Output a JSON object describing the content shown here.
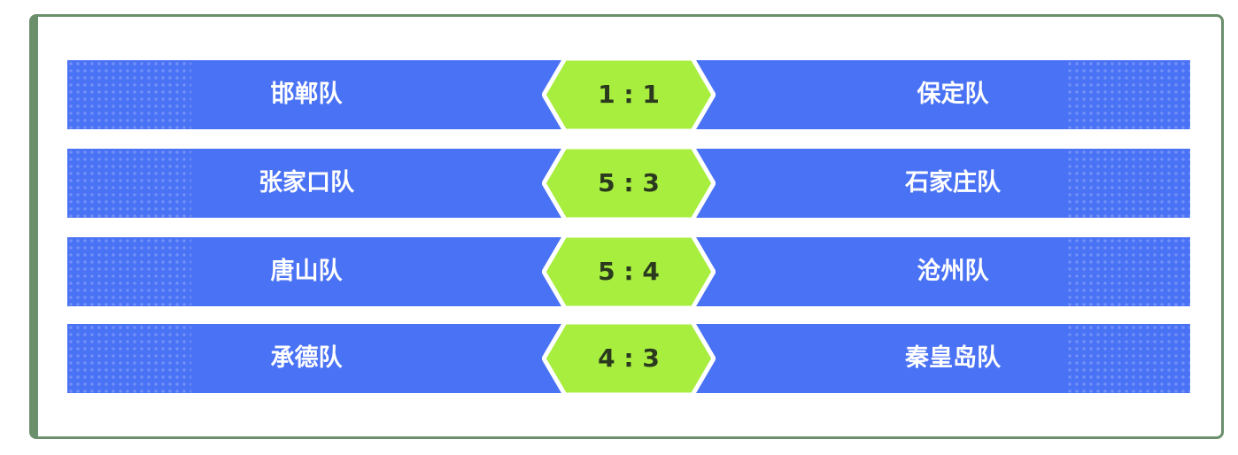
{
  "matches": [
    {
      "home": "邯郸队",
      "score": "1 : 1",
      "away": "保定队"
    },
    {
      "home": "张家口队",
      "score": "5 : 3",
      "away": "石家庄队"
    },
    {
      "home": "唐山队",
      "score": "5 : 4",
      "away": "沧州队"
    },
    {
      "home": "承德队",
      "score": "4 : 3",
      "away": "秦皇岛队"
    }
  ]
}
